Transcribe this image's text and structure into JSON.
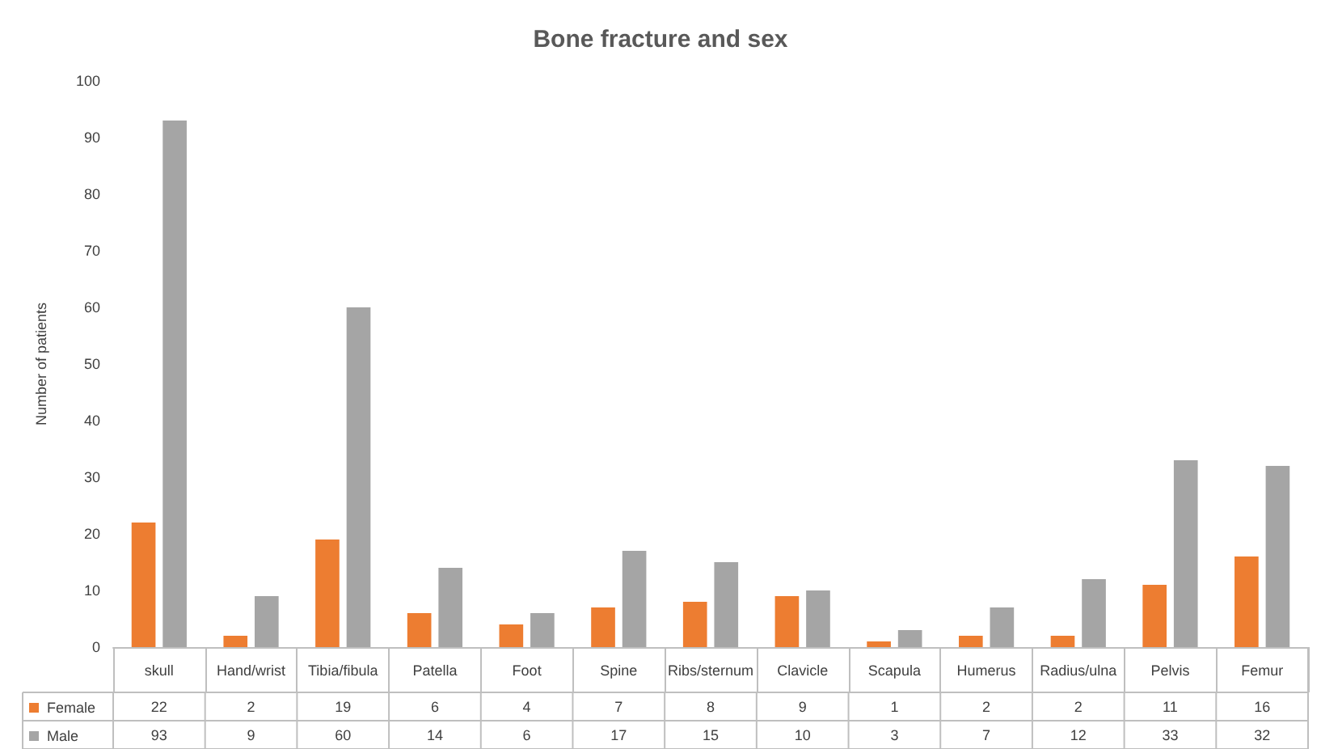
{
  "chart_data": {
    "type": "bar",
    "title": "Bone fracture and sex",
    "ylabel": "Number of patients",
    "categories": [
      "skull",
      "Hand/wrist",
      "Tibia/fibula",
      "Patella",
      "Foot",
      "Spine",
      "Ribs/sternum",
      "Clavicle",
      "Scapula",
      "Humerus",
      "Radius/ulna",
      "Pelvis",
      "Femur"
    ],
    "series": [
      {
        "name": "Female",
        "color": "#ed7d31",
        "values": [
          22,
          2,
          19,
          6,
          4,
          7,
          8,
          9,
          1,
          2,
          2,
          11,
          16
        ]
      },
      {
        "name": "Male",
        "color": "#a5a5a5",
        "values": [
          93,
          9,
          60,
          14,
          6,
          17,
          15,
          10,
          3,
          7,
          12,
          33,
          32
        ]
      }
    ],
    "ylim": [
      0,
      100
    ],
    "yticks": [
      0,
      10,
      20,
      30,
      40,
      50,
      60,
      70,
      80,
      90,
      100
    ],
    "grid": false,
    "legend": "bottom left",
    "data_labels": true
  }
}
